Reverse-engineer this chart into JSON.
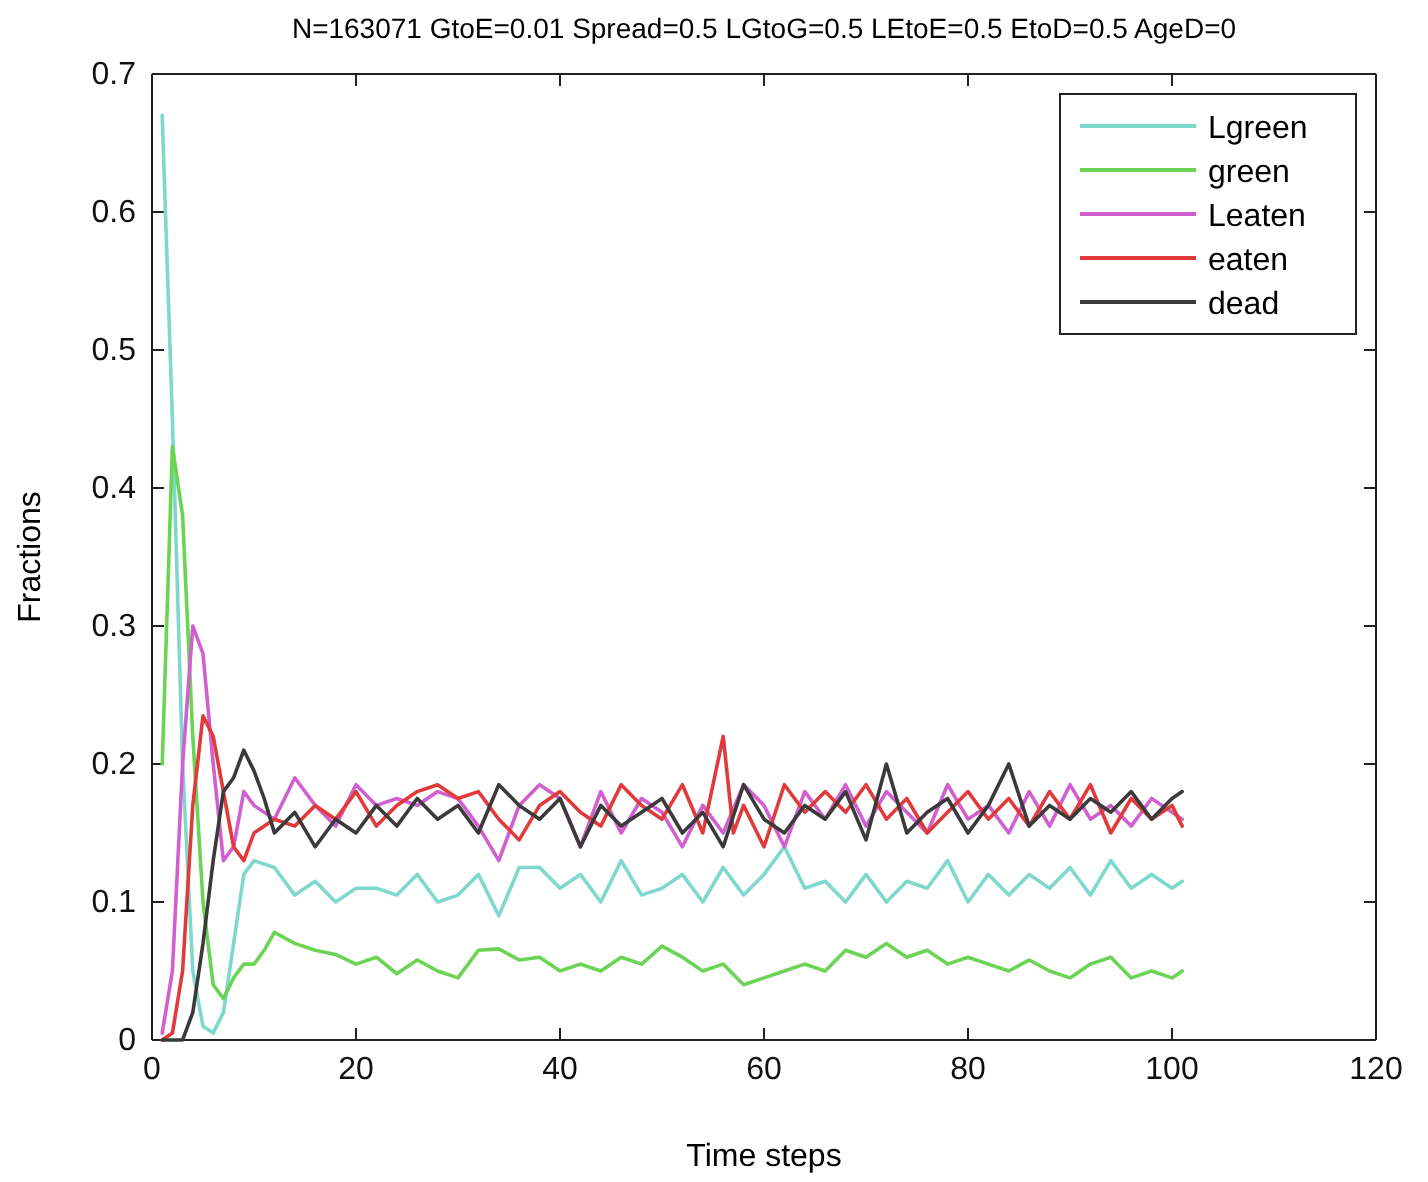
{
  "chart_data": {
    "type": "line",
    "title": "N=163071 GtoE=0.01 Spread=0.5 LGtoG=0.5 LEtoE=0.5 EtoD=0.5 AgeD=0",
    "xlabel": "Time steps",
    "ylabel": "Fractions",
    "xlim": [
      0,
      120
    ],
    "ylim": [
      0,
      0.7
    ],
    "xticks": [
      0,
      20,
      40,
      60,
      80,
      100,
      120
    ],
    "yticks": [
      0,
      0.1,
      0.2,
      0.3,
      0.4,
      0.5,
      0.6,
      0.7
    ],
    "grid": false,
    "legend": "top right",
    "line_style": "solid",
    "marker": "none",
    "series": [
      {
        "name": "Lgreen",
        "color": "#7fd8cc",
        "x": [
          1,
          2,
          3,
          4,
          5,
          6,
          7,
          8,
          9,
          10,
          12,
          14,
          16,
          18,
          20,
          22,
          24,
          26,
          28,
          30,
          32,
          34,
          36,
          38,
          40,
          42,
          44,
          46,
          48,
          50,
          52,
          54,
          56,
          58,
          60,
          62,
          64,
          66,
          68,
          70,
          72,
          74,
          76,
          78,
          80,
          82,
          84,
          86,
          88,
          90,
          92,
          94,
          96,
          98,
          100,
          101
        ],
        "values": [
          0.67,
          0.45,
          0.2,
          0.05,
          0.01,
          0.005,
          0.02,
          0.07,
          0.12,
          0.13,
          0.125,
          0.105,
          0.115,
          0.1,
          0.11,
          0.11,
          0.105,
          0.12,
          0.1,
          0.105,
          0.12,
          0.09,
          0.125,
          0.125,
          0.11,
          0.12,
          0.1,
          0.13,
          0.105,
          0.11,
          0.12,
          0.1,
          0.125,
          0.105,
          0.12,
          0.14,
          0.11,
          0.115,
          0.1,
          0.12,
          0.1,
          0.115,
          0.11,
          0.13,
          0.1,
          0.12,
          0.105,
          0.12,
          0.11,
          0.125,
          0.105,
          0.13,
          0.11,
          0.12,
          0.11,
          0.115
        ]
      },
      {
        "name": "green",
        "color": "#6cd454",
        "x": [
          1,
          2,
          3,
          4,
          5,
          6,
          7,
          8,
          9,
          10,
          11,
          12,
          14,
          16,
          18,
          20,
          22,
          24,
          26,
          28,
          30,
          32,
          34,
          36,
          38,
          40,
          42,
          44,
          46,
          48,
          50,
          52,
          54,
          56,
          58,
          60,
          62,
          64,
          66,
          68,
          70,
          72,
          74,
          76,
          78,
          80,
          82,
          84,
          86,
          88,
          90,
          92,
          94,
          96,
          98,
          100,
          101
        ],
        "values": [
          0.2,
          0.43,
          0.38,
          0.22,
          0.1,
          0.04,
          0.03,
          0.045,
          0.055,
          0.055,
          0.065,
          0.078,
          0.07,
          0.065,
          0.062,
          0.055,
          0.06,
          0.048,
          0.058,
          0.05,
          0.045,
          0.065,
          0.066,
          0.058,
          0.06,
          0.05,
          0.055,
          0.05,
          0.06,
          0.055,
          0.068,
          0.06,
          0.05,
          0.055,
          0.04,
          0.045,
          0.05,
          0.055,
          0.05,
          0.065,
          0.06,
          0.07,
          0.06,
          0.065,
          0.055,
          0.06,
          0.055,
          0.05,
          0.058,
          0.05,
          0.045,
          0.055,
          0.06,
          0.045,
          0.05,
          0.045,
          0.05
        ]
      },
      {
        "name": "Leaten",
        "color": "#d15fcf",
        "x": [
          1,
          2,
          3,
          4,
          5,
          6,
          7,
          8,
          9,
          10,
          12,
          14,
          16,
          18,
          20,
          22,
          24,
          26,
          28,
          30,
          32,
          34,
          36,
          38,
          40,
          42,
          44,
          46,
          48,
          50,
          52,
          54,
          56,
          58,
          60,
          62,
          64,
          66,
          68,
          70,
          72,
          74,
          76,
          78,
          80,
          82,
          84,
          86,
          88,
          90,
          92,
          94,
          96,
          98,
          100,
          101
        ],
        "values": [
          0.005,
          0.05,
          0.2,
          0.3,
          0.28,
          0.2,
          0.13,
          0.14,
          0.18,
          0.17,
          0.16,
          0.19,
          0.17,
          0.155,
          0.185,
          0.17,
          0.175,
          0.17,
          0.18,
          0.175,
          0.155,
          0.13,
          0.17,
          0.185,
          0.175,
          0.14,
          0.18,
          0.15,
          0.175,
          0.165,
          0.14,
          0.17,
          0.15,
          0.185,
          0.17,
          0.14,
          0.18,
          0.16,
          0.185,
          0.155,
          0.18,
          0.165,
          0.15,
          0.185,
          0.16,
          0.17,
          0.15,
          0.18,
          0.155,
          0.185,
          0.16,
          0.17,
          0.155,
          0.175,
          0.165,
          0.16
        ]
      },
      {
        "name": "eaten",
        "color": "#e03a3a",
        "x": [
          1,
          2,
          3,
          4,
          5,
          6,
          7,
          8,
          9,
          10,
          12,
          14,
          16,
          18,
          20,
          22,
          24,
          26,
          28,
          30,
          32,
          34,
          36,
          38,
          40,
          42,
          44,
          46,
          48,
          50,
          52,
          54,
          56,
          57,
          58,
          60,
          62,
          64,
          66,
          68,
          70,
          72,
          74,
          76,
          78,
          80,
          82,
          84,
          86,
          88,
          90,
          92,
          94,
          96,
          98,
          100,
          101
        ],
        "values": [
          0,
          0.005,
          0.05,
          0.17,
          0.235,
          0.22,
          0.18,
          0.14,
          0.13,
          0.15,
          0.16,
          0.155,
          0.17,
          0.16,
          0.18,
          0.155,
          0.17,
          0.18,
          0.185,
          0.175,
          0.18,
          0.16,
          0.145,
          0.17,
          0.18,
          0.165,
          0.155,
          0.185,
          0.17,
          0.16,
          0.185,
          0.15,
          0.22,
          0.15,
          0.17,
          0.14,
          0.185,
          0.165,
          0.18,
          0.165,
          0.185,
          0.16,
          0.175,
          0.15,
          0.165,
          0.18,
          0.16,
          0.175,
          0.155,
          0.18,
          0.16,
          0.185,
          0.15,
          0.175,
          0.16,
          0.17,
          0.155
        ]
      },
      {
        "name": "dead",
        "color": "#3a3a3a",
        "x": [
          1,
          3,
          4,
          5,
          6,
          7,
          8,
          9,
          10,
          11,
          12,
          14,
          16,
          18,
          20,
          22,
          24,
          26,
          28,
          30,
          32,
          34,
          36,
          38,
          40,
          42,
          44,
          46,
          48,
          50,
          52,
          54,
          56,
          58,
          60,
          62,
          64,
          66,
          68,
          70,
          72,
          74,
          76,
          78,
          80,
          82,
          84,
          86,
          88,
          90,
          92,
          94,
          96,
          98,
          100,
          101
        ],
        "values": [
          0,
          0,
          0.02,
          0.07,
          0.13,
          0.18,
          0.19,
          0.21,
          0.195,
          0.175,
          0.15,
          0.165,
          0.14,
          0.16,
          0.15,
          0.17,
          0.155,
          0.175,
          0.16,
          0.17,
          0.15,
          0.185,
          0.17,
          0.16,
          0.175,
          0.14,
          0.17,
          0.155,
          0.165,
          0.175,
          0.15,
          0.165,
          0.14,
          0.185,
          0.16,
          0.15,
          0.17,
          0.16,
          0.18,
          0.145,
          0.2,
          0.15,
          0.165,
          0.175,
          0.15,
          0.17,
          0.2,
          0.155,
          0.17,
          0.16,
          0.175,
          0.165,
          0.18,
          0.16,
          0.175,
          0.18
        ]
      }
    ]
  }
}
